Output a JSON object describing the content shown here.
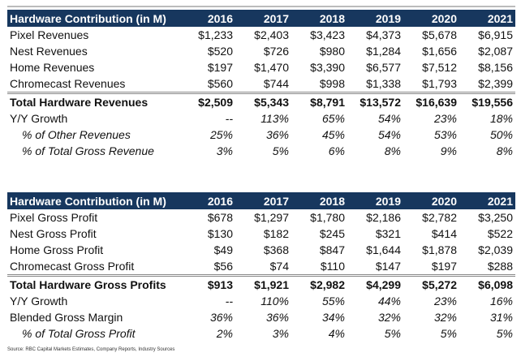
{
  "tables": [
    {
      "header": [
        "Hardware Contribution (in M)",
        "2016",
        "2017",
        "2018",
        "2019",
        "2020",
        "2021"
      ],
      "rows": [
        {
          "type": "normal",
          "cells": [
            "Pixel Revenues",
            "$1,233",
            "$2,403",
            "$3,423",
            "$4,373",
            "$5,678",
            "$6,915"
          ]
        },
        {
          "type": "normal",
          "cells": [
            "Nest Revenues",
            "$520",
            "$726",
            "$980",
            "$1,284",
            "$1,656",
            "$2,087"
          ]
        },
        {
          "type": "normal",
          "cells": [
            "Home Revenues",
            "$197",
            "$1,470",
            "$3,390",
            "$6,577",
            "$7,512",
            "$8,156"
          ]
        },
        {
          "type": "normal",
          "cells": [
            "Chromecast Revenues",
            "$560",
            "$744",
            "$998",
            "$1,338",
            "$1,793",
            "$2,399"
          ]
        },
        {
          "type": "total",
          "cells": [
            "Total Hardware Revenues",
            "$2,509",
            "$5,343",
            "$8,791",
            "$13,572",
            "$16,639",
            "$19,556"
          ]
        },
        {
          "type": "growth",
          "cells": [
            "Y/Y Growth",
            "--",
            "113%",
            "65%",
            "54%",
            "23%",
            "18%"
          ]
        },
        {
          "type": "ital",
          "cells": [
            "% of Other Revenues",
            "25%",
            "36%",
            "45%",
            "54%",
            "53%",
            "50%"
          ]
        },
        {
          "type": "ital",
          "cells": [
            "% of Total Gross Revenue",
            "3%",
            "5%",
            "6%",
            "8%",
            "9%",
            "8%"
          ]
        }
      ]
    },
    {
      "header": [
        "Hardware Contribution (in M)",
        "2016",
        "2017",
        "2018",
        "2019",
        "2020",
        "2021"
      ],
      "rows": [
        {
          "type": "normal",
          "cells": [
            "Pixel Gross Profit",
            "$678",
            "$1,297",
            "$1,780",
            "$2,186",
            "$2,782",
            "$3,250"
          ]
        },
        {
          "type": "normal",
          "cells": [
            "Nest Gross Profit",
            "$130",
            "$182",
            "$245",
            "$321",
            "$414",
            "$522"
          ]
        },
        {
          "type": "normal",
          "cells": [
            "Home Gross Profit",
            "$49",
            "$368",
            "$847",
            "$1,644",
            "$1,878",
            "$2,039"
          ]
        },
        {
          "type": "normal",
          "cells": [
            "Chromecast Gross Profit",
            "$56",
            "$74",
            "$110",
            "$147",
            "$197",
            "$288"
          ]
        },
        {
          "type": "total",
          "cells": [
            "Total Hardware Gross Profits",
            "$913",
            "$1,921",
            "$2,982",
            "$4,299",
            "$5,272",
            "$6,098"
          ]
        },
        {
          "type": "growth",
          "cells": [
            "Y/Y Growth",
            "--",
            "110%",
            "55%",
            "44%",
            "23%",
            "16%"
          ]
        },
        {
          "type": "growth",
          "cells": [
            "Blended Gross Margin",
            "36%",
            "36%",
            "34%",
            "32%",
            "32%",
            "31%"
          ]
        },
        {
          "type": "ital",
          "cells": [
            "% of Total Gross Profit",
            "2%",
            "3%",
            "4%",
            "5%",
            "5%",
            "5%"
          ]
        }
      ]
    }
  ],
  "source": "Source: RBC Capital Markets Estimates, Company Reports, Industry Sources",
  "colors": {
    "header_bg": "#17375e",
    "header_text": "#ffffff"
  }
}
